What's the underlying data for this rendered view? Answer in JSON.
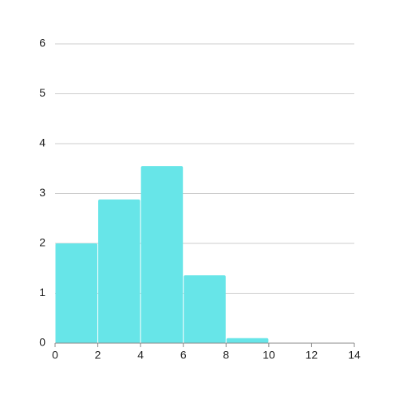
{
  "chart_data": {
    "type": "histogram",
    "bins": [
      0,
      2,
      4,
      6,
      8,
      10
    ],
    "values": [
      2,
      2.88,
      3.55,
      1.36,
      0.1
    ],
    "color": "#67e5e8",
    "xlim": [
      0,
      14
    ],
    "xticks": [
      0,
      2,
      4,
      6,
      8,
      10,
      12,
      14
    ],
    "ylim": [
      0,
      6
    ],
    "yticks": [
      0,
      1,
      2,
      3,
      4,
      5,
      6
    ],
    "grid": true
  }
}
